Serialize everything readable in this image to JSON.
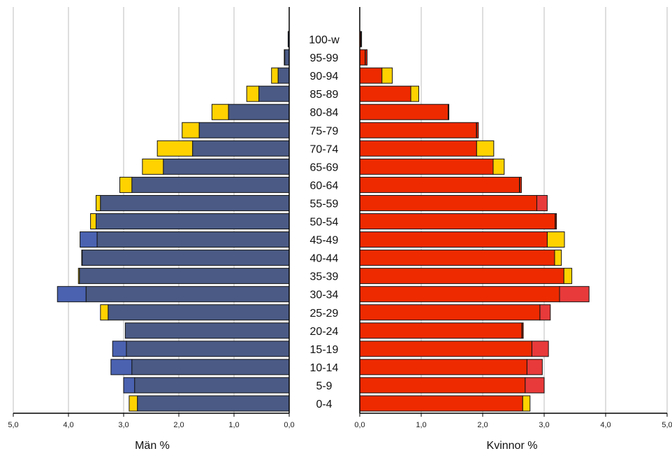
{
  "chart_data": {
    "type": "bar",
    "categories": [
      "100-w",
      "95-99",
      "90-94",
      "85-89",
      "80-84",
      "75-79",
      "70-74",
      "65-69",
      "60-64",
      "55-59",
      "50-54",
      "45-49",
      "40-44",
      "35-39",
      "30-34",
      "25-29",
      "20-24",
      "15-19",
      "10-14",
      "5-9",
      "0-4"
    ],
    "left_panel": {
      "xlabel": "Män %",
      "xlim": [
        0,
        5
      ],
      "ticks": [
        "5,0",
        "4,0",
        "3,0",
        "2,0",
        "1,0",
        "0,0"
      ],
      "series": [
        {
          "values": [
            0.02,
            0.08,
            0.2,
            0.55,
            1.1,
            1.63,
            1.75,
            2.28,
            2.85,
            3.42,
            3.5,
            3.48,
            3.75,
            3.8,
            3.68,
            3.28,
            2.97,
            2.95,
            2.85,
            2.8,
            2.75
          ]
        },
        {
          "values": [
            0.02,
            0.09,
            0.32,
            0.77,
            1.4,
            1.94,
            2.39,
            2.66,
            3.07,
            3.5,
            3.6,
            3.79,
            3.76,
            3.82,
            4.2,
            3.42,
            2.97,
            3.2,
            3.23,
            3.0,
            2.9
          ]
        }
      ]
    },
    "right_panel": {
      "xlabel": "Kvinnor %",
      "xlim": [
        0,
        5
      ],
      "ticks": [
        "0,0",
        "1,0",
        "2,0",
        "3,0",
        "4,0",
        "5,0"
      ],
      "series": [
        {
          "values": [
            0.03,
            0.12,
            0.36,
            0.83,
            1.45,
            1.93,
            1.9,
            2.17,
            2.63,
            2.88,
            3.2,
            3.05,
            3.17,
            3.32,
            3.25,
            2.93,
            2.66,
            2.8,
            2.72,
            2.69,
            2.65
          ]
        },
        {
          "values": [
            0.02,
            0.09,
            0.53,
            0.96,
            1.44,
            1.9,
            2.18,
            2.35,
            2.6,
            3.05,
            3.18,
            3.33,
            3.28,
            3.45,
            3.73,
            3.1,
            2.64,
            3.07,
            2.97,
            3.0,
            2.77
          ]
        }
      ]
    },
    "grid": true
  },
  "colors": {
    "men_bar": "#4a5a85",
    "men_bar_alt": "#4a62b0",
    "women_bar": "#ee2a00",
    "women_bar_alt": "#e83a3a",
    "excess": "#ffd200",
    "grid": "#d4d4d4",
    "bar_edge": "#141414"
  }
}
